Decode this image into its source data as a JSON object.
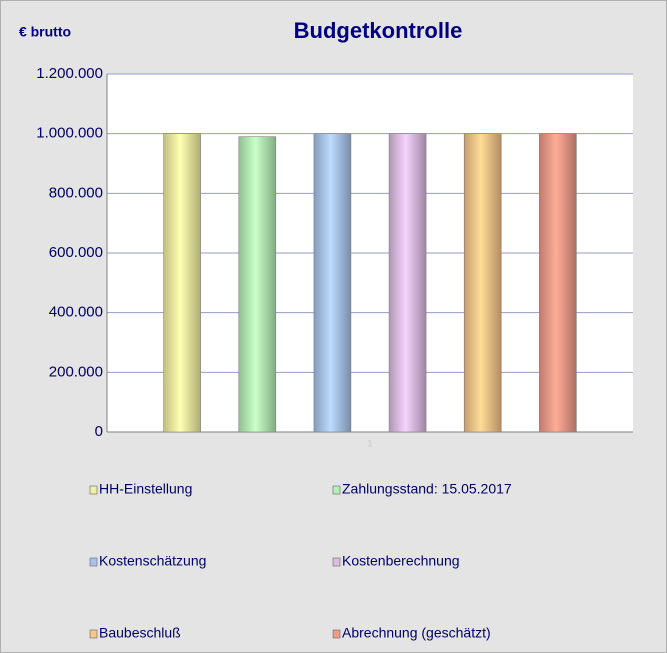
{
  "chart_data": {
    "type": "bar",
    "title": "Budgetkontrolle",
    "ylabel": "€ brutto",
    "categories": [
      "1"
    ],
    "series": [
      {
        "name": "HH-Einstellung",
        "color": "#f2f0a0",
        "values": [
          1000000
        ]
      },
      {
        "name": "Zahlungsstand: 15.05.2017",
        "color": "#b4f0b4",
        "values": [
          990000
        ]
      },
      {
        "name": "Kostenschätzung",
        "color": "#a8c4ea",
        "values": [
          1000000
        ]
      },
      {
        "name": "Kostenberechnung",
        "color": "#dcbce2",
        "values": [
          1000000
        ]
      },
      {
        "name": "Baubeschluß",
        "color": "#f8c488",
        "values": [
          1000000
        ]
      },
      {
        "name": "Abrechnung (geschätzt)",
        "color": "#f09a88",
        "values": [
          1000000
        ]
      }
    ],
    "ylim": [
      0,
      1200000
    ],
    "yticks": [
      0,
      {
        "value": 200000,
        "label": "200.000"
      },
      {
        "value": 400000,
        "label": "400.000"
      },
      {
        "value": 600000,
        "label": "600.000"
      },
      {
        "value": 800000,
        "label": "800.000"
      },
      {
        "value": 1000000,
        "label": "1.000.000"
      },
      {
        "value": 1200000,
        "label": "1.200.000"
      }
    ],
    "grid": true
  }
}
